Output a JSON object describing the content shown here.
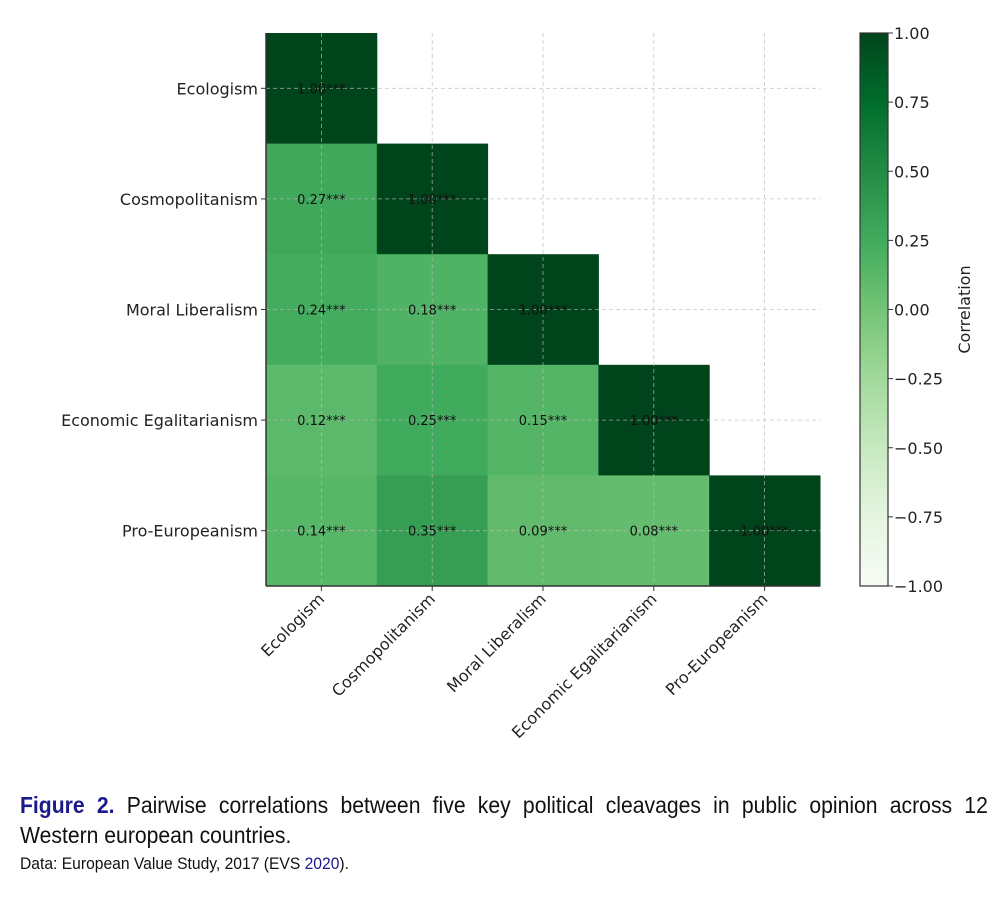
{
  "chart_data": {
    "type": "heatmap",
    "title": "",
    "variables": [
      "Ecologism",
      "Cosmopolitanism",
      "Moral Liberalism",
      "Economic Egalitarianism",
      "Pro-Europeanism"
    ],
    "x_tick_labels": [
      "Ecologism",
      "Cosmopolitanism",
      "Moral Liberalism",
      "Economic Egalitarianism",
      "Pro-Europeanism"
    ],
    "y_tick_labels": [
      "Ecologism",
      "Cosmopolitanism",
      "Moral Liberalism",
      "Economic Egalitarianism",
      "Pro-Europeanism"
    ],
    "matrix": [
      [
        1.0,
        null,
        null,
        null,
        null
      ],
      [
        0.27,
        1.0,
        null,
        null,
        null
      ],
      [
        0.24,
        0.18,
        1.0,
        null,
        null
      ],
      [
        0.12,
        0.25,
        0.15,
        1.0,
        null
      ],
      [
        0.14,
        0.35,
        0.09,
        0.08,
        1.0
      ]
    ],
    "annotations": [
      [
        "1.00***",
        null,
        null,
        null,
        null
      ],
      [
        "0.27***",
        "1.00***",
        null,
        null,
        null
      ],
      [
        "0.24***",
        "0.18***",
        "1.00***",
        null,
        null
      ],
      [
        "0.12***",
        "0.25***",
        "0.15***",
        "1.00***",
        null
      ],
      [
        "0.14***",
        "0.35***",
        "0.09***",
        "0.08***",
        "1.00***"
      ]
    ],
    "mask": "upper-triangle",
    "colormap": "Greens",
    "vmin": -1.0,
    "vmax": 1.0,
    "colorbar": {
      "label": "Correlation",
      "ticks": [
        1.0,
        0.75,
        0.5,
        0.25,
        0.0,
        -0.25,
        -0.5,
        -0.75,
        -1.0
      ],
      "tick_labels": [
        "1.00",
        "0.75",
        "0.50",
        "0.25",
        "0.00",
        "−0.25",
        "−0.50",
        "−0.75",
        "−1.00"
      ],
      "placement": "right"
    },
    "grid": true,
    "x_tick_rotation": 45
  },
  "caption": {
    "figure_label": "Figure 2.",
    "text": "Pairwise correlations between five key political cleavages in public opinion across 12 Western european countries.",
    "source_prefix": "Data: European Value Study, 2017 (EVS ",
    "source_year_link": "2020",
    "source_suffix": ")."
  }
}
